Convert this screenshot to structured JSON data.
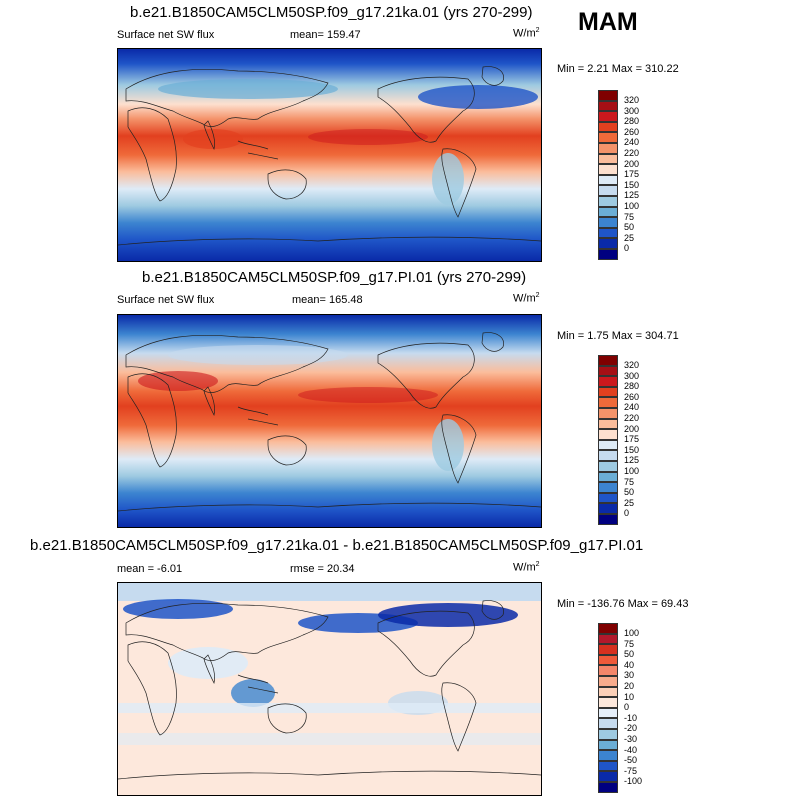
{
  "season": "MAM",
  "panels": [
    {
      "title": "b.e21.B1850CAM5CLM50SP.f09_g17.21ka.01 (yrs 270-299)",
      "left_label": "Surface net SW flux",
      "mid_label": "mean= 159.47",
      "units": "W/m",
      "units_exp": "2",
      "minmax": "Min =   2.21 Max = 310.22",
      "colorbar": {
        "ticks": [
          "320",
          "300",
          "280",
          "260",
          "240",
          "220",
          "200",
          "175",
          "150",
          "125",
          "100",
          "75",
          "50",
          "25",
          "0"
        ],
        "colors": [
          "#7f0000",
          "#a50f15",
          "#cb181d",
          "#e2401f",
          "#ef6a3a",
          "#f4936a",
          "#fbbd9c",
          "#fde0cf",
          "#deebf7",
          "#c6dbef",
          "#9ecae1",
          "#6baed6",
          "#3c84d0",
          "#1f55c8",
          "#0a2aa8",
          "#000080"
        ]
      }
    },
    {
      "title": "b.e21.B1850CAM5CLM50SP.f09_g17.PI.01 (yrs 270-299)",
      "left_label": "Surface net SW flux",
      "mid_label": "mean= 165.48",
      "units": "W/m",
      "units_exp": "2",
      "minmax": "Min =   1.75 Max = 304.71",
      "colorbar": {
        "ticks": [
          "320",
          "300",
          "280",
          "260",
          "240",
          "220",
          "200",
          "175",
          "150",
          "125",
          "100",
          "75",
          "50",
          "25",
          "0"
        ],
        "colors": [
          "#7f0000",
          "#a50f15",
          "#cb181d",
          "#e2401f",
          "#ef6a3a",
          "#f4936a",
          "#fbbd9c",
          "#fde0cf",
          "#deebf7",
          "#c6dbef",
          "#9ecae1",
          "#6baed6",
          "#3c84d0",
          "#1f55c8",
          "#0a2aa8",
          "#000080"
        ]
      }
    },
    {
      "title": "b.e21.B1850CAM5CLM50SP.f09_g17.21ka.01 - b.e21.B1850CAM5CLM50SP.f09_g17.PI.01",
      "left_label": "mean =  -6.01",
      "mid_label": "rmse =  20.34",
      "units": "W/m",
      "units_exp": "2",
      "minmax": "Min = -136.76 Max =  69.43",
      "colorbar": {
        "ticks": [
          "100",
          "75",
          "50",
          "40",
          "30",
          "20",
          "10",
          "0",
          "-10",
          "-20",
          "-30",
          "-40",
          "-50",
          "-75",
          "-100"
        ],
        "colors": [
          "#7f0000",
          "#b2182b",
          "#d6301f",
          "#ef5a3a",
          "#f4866a",
          "#f8ab8c",
          "#fcd0b8",
          "#fde8dc",
          "#e6effa",
          "#c6dbef",
          "#9ecae1",
          "#6baed6",
          "#3c84d0",
          "#1f55c8",
          "#0a2aa8",
          "#000080"
        ]
      }
    }
  ]
}
